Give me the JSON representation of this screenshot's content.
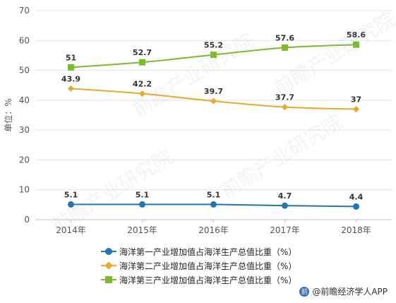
{
  "chart_data": {
    "type": "line",
    "categories": [
      "2014年",
      "2015年",
      "2016年",
      "2017年",
      "2018年"
    ],
    "ylabel": "单位：%",
    "ylim": [
      0,
      70
    ],
    "yticks": [
      0,
      10,
      20,
      30,
      40,
      50,
      60,
      70
    ],
    "grid": true,
    "legend_position": "bottom",
    "series": [
      {
        "name": "海洋第一产业增加值占海洋生产总值比重（%）",
        "values": [
          5.1,
          5.1,
          5.1,
          4.7,
          4.4
        ],
        "color": "#1f77b4",
        "marker": "circle"
      },
      {
        "name": "海洋第二产业增加值占海洋生产总值比重（%）",
        "values": [
          43.9,
          42.2,
          39.7,
          37.7,
          37
        ],
        "color": "#e6a92b",
        "marker": "diamond"
      },
      {
        "name": "海洋第三产业增加值占海洋生产总值比重（%）",
        "values": [
          51,
          52.7,
          55.2,
          57.6,
          58.6
        ],
        "color": "#7cbb2a",
        "marker": "square"
      }
    ]
  },
  "credit": {
    "icon": "qianzhan-logo-icon",
    "text": "@前瞻经济学人APP"
  },
  "watermark": "前瞻产业研究院"
}
